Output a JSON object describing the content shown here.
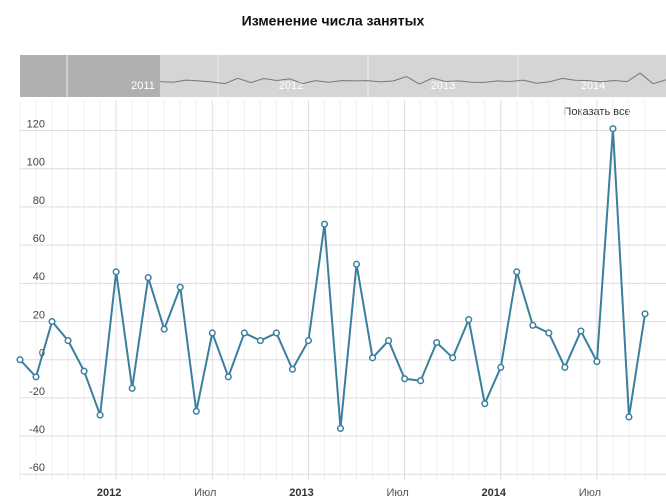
{
  "chart_data": {
    "type": "line",
    "title": "Изменение числа занятых",
    "button": "Показать все",
    "navigator_labels": [
      "2011",
      "2012",
      "2013",
      "2014"
    ],
    "categories": [
      null,
      null,
      null,
      null,
      null,
      null,
      "2012",
      null,
      null,
      null,
      null,
      null,
      "Июл",
      null,
      null,
      null,
      null,
      null,
      "2013",
      null,
      null,
      null,
      null,
      null,
      "Июл",
      null,
      null,
      null,
      null,
      null,
      "2014",
      null,
      null,
      null,
      null,
      null,
      "Июл",
      null,
      null,
      null
    ],
    "series": [
      {
        "name": "Изменение числа занятых",
        "color": "#3b7f9f",
        "values": [
          0,
          -9,
          20,
          10,
          -6,
          -29,
          46,
          -15,
          43,
          16,
          38,
          -27,
          14,
          -9,
          14,
          10,
          14,
          -5,
          10,
          71,
          -36,
          50,
          1,
          10,
          -10,
          -11,
          9,
          1,
          21,
          -23,
          -4,
          46,
          18,
          14,
          -4,
          15,
          -1,
          121,
          -30,
          24
        ]
      }
    ],
    "ylim": [
      -63,
      136
    ],
    "yticks": [
      -60,
      -40,
      -20,
      0,
      20,
      40,
      60,
      80,
      100,
      120
    ],
    "grid": true
  }
}
